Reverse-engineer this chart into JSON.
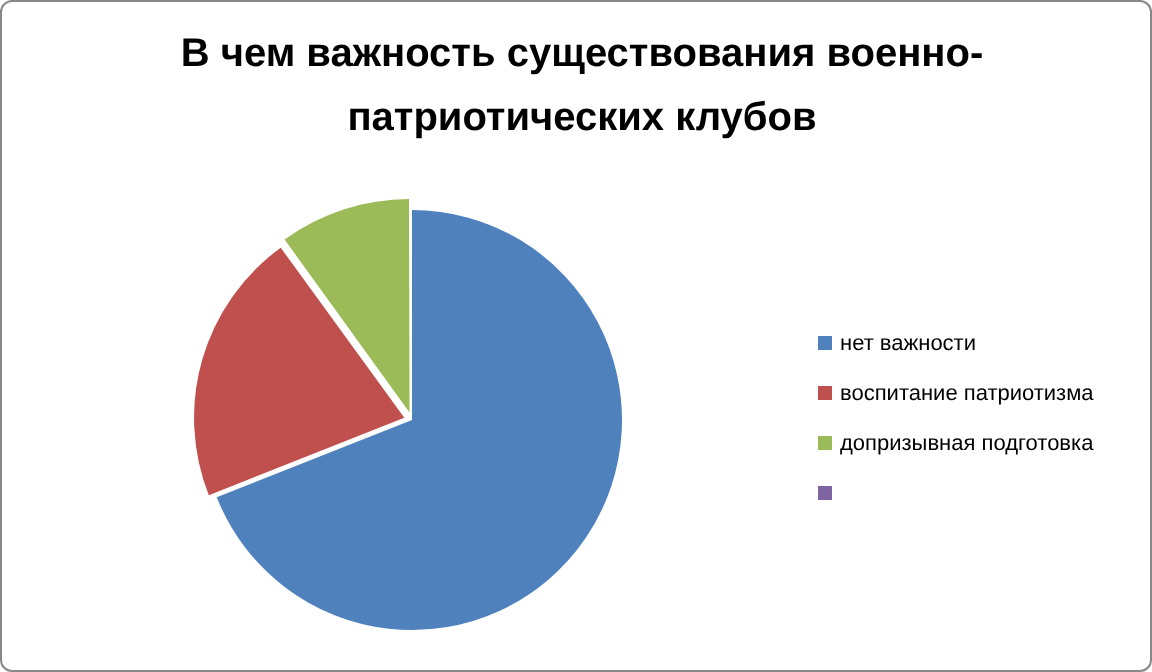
{
  "chart_data": {
    "type": "pie",
    "title": "В чем важность существования военно-патриотических клубов",
    "categories": [
      "нет важности",
      "воспитание патриотизма",
      "допризывная подготовка",
      null
    ],
    "values": [
      69,
      21,
      10,
      0
    ],
    "colors": [
      "#4f81bd",
      "#c0504d",
      "#9bbb59",
      "#8064a2"
    ],
    "legend": "right"
  }
}
